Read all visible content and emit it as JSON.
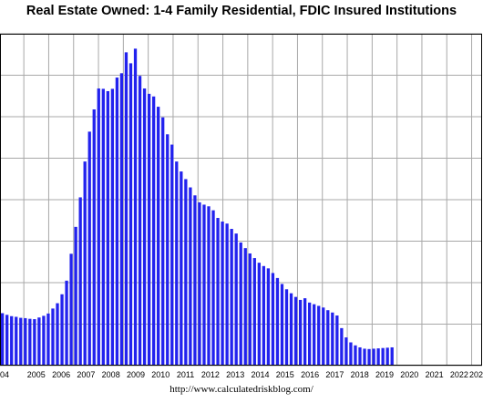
{
  "chart_data": {
    "type": "bar",
    "title": "Real Estate Owned: 1-4 Family Residential, FDIC Insured Institutions",
    "source": "http://www.calculatedriskblog.com/",
    "xlabel": "",
    "ylabel": "",
    "x_tick_labels": [
      "04",
      "2005",
      "2006",
      "2007",
      "2008",
      "2009",
      "2010",
      "2011",
      "2012",
      "2013",
      "2014",
      "2015",
      "2016",
      "2017",
      "2018",
      "2019",
      "2020",
      "2021",
      "2022",
      "202"
    ],
    "grid": true,
    "bar_color": "#2222ee",
    "y_unit": "fraction of visible plot height",
    "values": [
      0.158,
      0.153,
      0.149,
      0.147,
      0.144,
      0.143,
      0.141,
      0.14,
      0.145,
      0.15,
      0.157,
      0.172,
      0.188,
      0.215,
      0.256,
      0.337,
      0.418,
      0.507,
      0.615,
      0.705,
      0.772,
      0.835,
      0.834,
      0.827,
      0.834,
      0.868,
      0.881,
      0.944,
      0.911,
      0.955,
      0.873,
      0.835,
      0.819,
      0.811,
      0.78,
      0.748,
      0.697,
      0.666,
      0.615,
      0.585,
      0.562,
      0.537,
      0.513,
      0.492,
      0.485,
      0.48,
      0.468,
      0.445,
      0.434,
      0.428,
      0.412,
      0.398,
      0.371,
      0.354,
      0.338,
      0.324,
      0.31,
      0.3,
      0.293,
      0.279,
      0.264,
      0.246,
      0.23,
      0.218,
      0.207,
      0.198,
      0.203,
      0.19,
      0.185,
      0.18,
      0.175,
      0.167,
      0.16,
      0.151,
      0.113,
      0.085,
      0.07,
      0.061,
      0.055,
      0.051,
      0.05,
      0.051,
      0.052,
      0.053,
      0.054,
      0.055
    ]
  }
}
